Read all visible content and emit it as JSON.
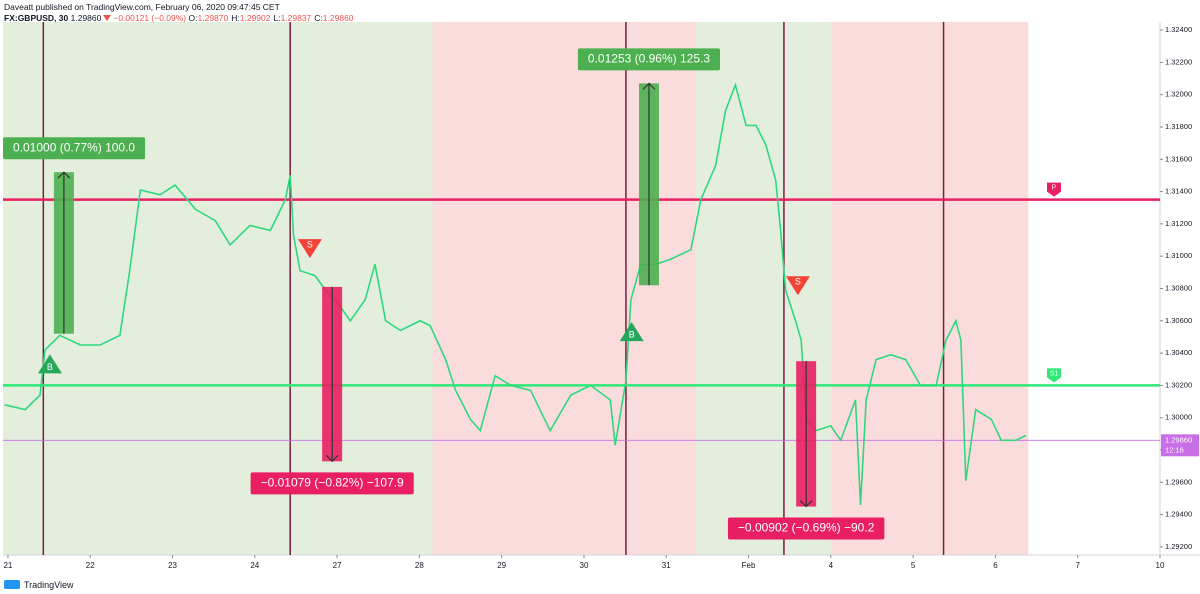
{
  "header": {
    "publisher": "Daveatt published on TradingView.com, February 06, 2020 09:47:45 CET",
    "symbol": "FX:GBPUSD, 30",
    "last": "1.29860",
    "change": "−0.00121 (−0.09%)",
    "ohlc": [
      {
        "key": "O:",
        "value": "1.29870"
      },
      {
        "key": "H:",
        "value": "1.29902"
      },
      {
        "key": "L:",
        "value": "1.29837"
      },
      {
        "key": "C:",
        "value": "1.29860"
      }
    ]
  },
  "footer": {
    "brand": "TradingView"
  },
  "chart_data": {
    "type": "line",
    "color": "#2fd87f",
    "x": [
      -0.04,
      0.21,
      0.39,
      0.45,
      0.63,
      0.88,
      1.12,
      1.36,
      1.48,
      1.61,
      1.85,
      2.03,
      2.28,
      2.52,
      2.7,
      2.94,
      3.19,
      3.37,
      3.43,
      3.47,
      3.55,
      3.73,
      3.86,
      3.98,
      4.16,
      4.34,
      4.46,
      4.59,
      4.77,
      5.01,
      5.13,
      5.32,
      5.44,
      5.62,
      5.74,
      5.92,
      6.11,
      6.35,
      6.59,
      6.84,
      7.08,
      7.32,
      7.38,
      7.51,
      7.57,
      7.69,
      7.87,
      8.05,
      8.3,
      8.42,
      8.6,
      8.72,
      8.84,
      8.97,
      9.09,
      9.21,
      9.33,
      9.39,
      9.45,
      9.57,
      9.64,
      9.7,
      9.82,
      10.0,
      10.12,
      10.3,
      10.36,
      10.43,
      10.55,
      10.73,
      10.91,
      11.09,
      11.28,
      11.4,
      11.52,
      11.58,
      11.64,
      11.76,
      11.95,
      12.07,
      12.25,
      12.37
    ],
    "values": [
      1.3008,
      1.3005,
      1.3014,
      1.3042,
      1.3051,
      1.3045,
      1.3045,
      1.3051,
      1.3091,
      1.3141,
      1.3138,
      1.3144,
      1.3129,
      1.3122,
      1.3107,
      1.3119,
      1.3116,
      1.3135,
      1.315,
      1.3113,
      1.3091,
      1.3088,
      1.3079,
      1.3073,
      1.306,
      1.3073,
      1.3095,
      1.306,
      1.3054,
      1.306,
      1.3057,
      1.3036,
      1.3017,
      1.2999,
      1.2992,
      1.3026,
      1.302,
      1.3017,
      1.2992,
      1.3014,
      1.302,
      1.3011,
      1.2983,
      1.3023,
      1.3073,
      1.3095,
      1.3095,
      1.3098,
      1.3104,
      1.3135,
      1.3156,
      1.319,
      1.3206,
      1.3181,
      1.3181,
      1.3169,
      1.3147,
      1.3116,
      1.3079,
      1.306,
      1.3048,
      1.2999,
      1.2992,
      1.2995,
      1.2986,
      1.3011,
      1.2946,
      1.3011,
      1.3036,
      1.3039,
      1.3036,
      1.302,
      1.302,
      1.3048,
      1.306,
      1.3048,
      1.2961,
      1.3005,
      1.2999,
      1.2986,
      1.2986,
      1.2989
    ],
    "xlim": [
      -0.06,
      14.0
    ],
    "xticks": [
      {
        "value": 0,
        "label": "21"
      },
      {
        "value": 1,
        "label": "22"
      },
      {
        "value": 2,
        "label": "23"
      },
      {
        "value": 3,
        "label": "24"
      },
      {
        "value": 4,
        "label": "27"
      },
      {
        "value": 5,
        "label": "28"
      },
      {
        "value": 6,
        "label": "29"
      },
      {
        "value": 7,
        "label": "30"
      },
      {
        "value": 8,
        "label": "31"
      },
      {
        "value": 9,
        "label": "Feb"
      },
      {
        "value": 10,
        "label": "4"
      },
      {
        "value": 11,
        "label": "5"
      },
      {
        "value": 12,
        "label": "6"
      },
      {
        "value": 13,
        "label": "7"
      },
      {
        "value": 14,
        "label": "10"
      }
    ],
    "ylim": [
      1.2915,
      1.3245
    ],
    "yticks": [
      {
        "value": 1.292,
        "label": "1.29200"
      },
      {
        "value": 1.294,
        "label": "1.29400"
      },
      {
        "value": 1.296,
        "label": "1.29600"
      },
      {
        "value": 1.298,
        "label": "1.29800"
      },
      {
        "value": 1.3,
        "label": "1.30000"
      },
      {
        "value": 1.302,
        "label": "1.30200"
      },
      {
        "value": 1.304,
        "label": "1.30400"
      },
      {
        "value": 1.306,
        "label": "1.30600"
      },
      {
        "value": 1.308,
        "label": "1.30800"
      },
      {
        "value": 1.31,
        "label": "1.31000"
      },
      {
        "value": 1.312,
        "label": "1.31200"
      },
      {
        "value": 1.314,
        "label": "1.31400"
      },
      {
        "value": 1.316,
        "label": "1.31600"
      },
      {
        "value": 1.318,
        "label": "1.31800"
      },
      {
        "value": 1.32,
        "label": "1.32000"
      },
      {
        "value": 1.322,
        "label": "1.32200"
      },
      {
        "value": 1.324,
        "label": "1.32400"
      }
    ],
    "sessions": [
      {
        "start": -0.06,
        "end": 5.16,
        "color": "#e3efdc"
      },
      {
        "start": 5.16,
        "end": 8.36,
        "color": "#fbdcdc"
      },
      {
        "start": 8.36,
        "end": 10.0,
        "color": "#e3efdc"
      },
      {
        "start": 10.0,
        "end": 12.4,
        "color": "#fbdcdc"
      }
    ],
    "vlines": [
      0.43,
      3.43,
      7.51,
      9.43,
      11.37
    ],
    "levels": [
      {
        "label": "P",
        "value": 1.3135,
        "color": "#e91e63"
      },
      {
        "label": "S1",
        "value": 1.302,
        "color": "#2ee878"
      }
    ],
    "last_price": {
      "value": 1.2986,
      "label": "1.29860",
      "time": "12:16",
      "color": "#c86ee6"
    },
    "measures": [
      {
        "label": "0.01000 (0.77%) 100.0",
        "x": 0.68,
        "from": 1.3052,
        "to": 1.3152,
        "color": "#4caf50"
      },
      {
        "label": "−0.01079 (−0.82%) −107.9",
        "x": 3.94,
        "from": 1.3081,
        "to": 1.2973,
        "color": "#e91e63"
      },
      {
        "label": "0.01253 (0.96%) 125.3",
        "x": 7.79,
        "from": 1.3082,
        "to": 1.3207,
        "color": "#4caf50"
      },
      {
        "label": "−0.00902 (−0.69%) −90.2",
        "x": 9.7,
        "from": 1.3035,
        "to": 1.2945,
        "color": "#e91e63"
      }
    ],
    "signals": [
      {
        "label": "B",
        "x": 0.51,
        "price": 1.3033,
        "color": "#26a65b"
      },
      {
        "label": "S",
        "x": 3.67,
        "price": 1.3105,
        "color": "#f44336"
      },
      {
        "label": "B",
        "x": 7.58,
        "price": 1.3053,
        "color": "#26a65b"
      },
      {
        "label": "S",
        "x": 9.6,
        "price": 1.3082,
        "color": "#f44336"
      }
    ]
  }
}
